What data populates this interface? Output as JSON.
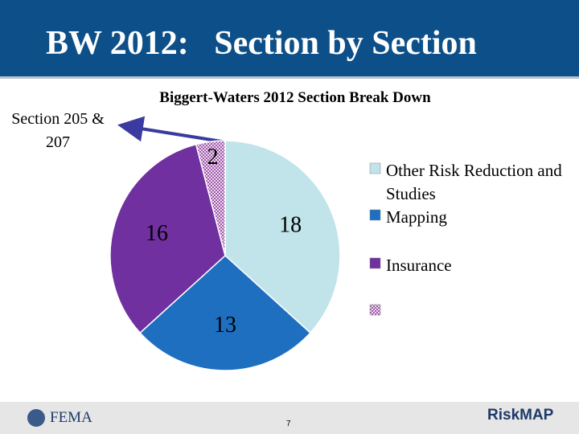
{
  "header": {
    "title": "BW 2012:   Section by Section"
  },
  "annotation": "Section 205 & 207",
  "footer": {
    "agency": "FEMA",
    "page": "7",
    "brand": "RiskMAP"
  },
  "chart_data": {
    "type": "pie",
    "title": "Biggert-Waters 2012 Section Break Down",
    "categories": [
      "Other Risk Reduction and Studies",
      "Mapping",
      "Insurance",
      null
    ],
    "values": [
      18,
      13,
      16,
      2
    ],
    "colors": [
      "#c0e4ea",
      "#1f6fc0",
      "#7030a0",
      "#e2c2e6"
    ],
    "patterns": [
      null,
      null,
      null,
      "checker"
    ]
  }
}
